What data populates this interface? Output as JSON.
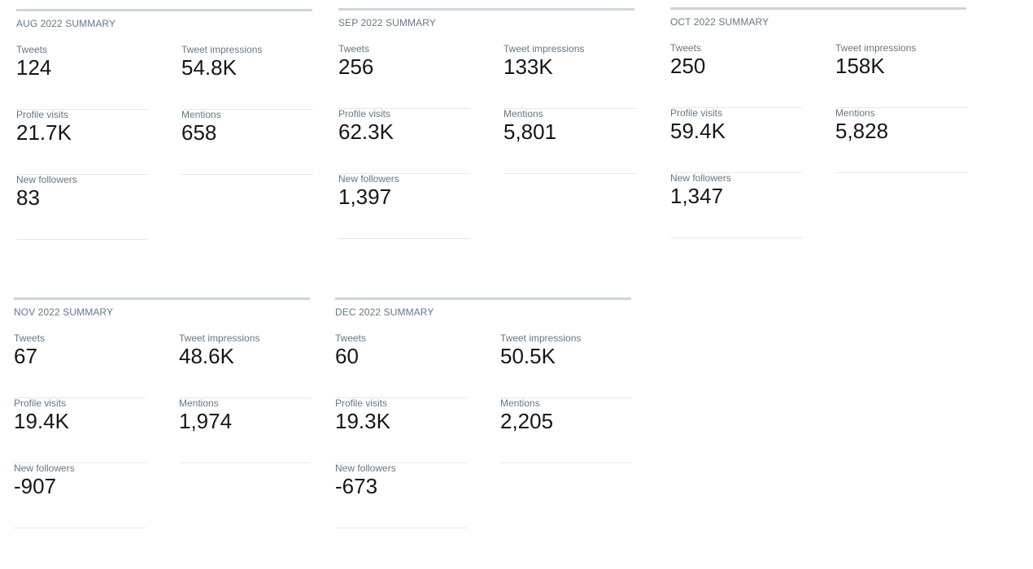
{
  "cards": [
    {
      "title": "AUG 2022 SUMMARY",
      "tweets": {
        "label": "Tweets",
        "value": "124"
      },
      "impressions": {
        "label": "Tweet impressions",
        "value": "54.8K"
      },
      "profile_visits": {
        "label": "Profile visits",
        "value": "21.7K"
      },
      "mentions": {
        "label": "Mentions",
        "value": "658"
      },
      "new_followers": {
        "label": "New followers",
        "value": "83"
      }
    },
    {
      "title": "SEP 2022 SUMMARY",
      "tweets": {
        "label": "Tweets",
        "value": "256"
      },
      "impressions": {
        "label": "Tweet impressions",
        "value": "133K"
      },
      "profile_visits": {
        "label": "Profile visits",
        "value": "62.3K"
      },
      "mentions": {
        "label": "Mentions",
        "value": "5,801"
      },
      "new_followers": {
        "label": "New followers",
        "value": "1,397"
      }
    },
    {
      "title": "OCT 2022 SUMMARY",
      "tweets": {
        "label": "Tweets",
        "value": "250"
      },
      "impressions": {
        "label": "Tweet impressions",
        "value": "158K"
      },
      "profile_visits": {
        "label": "Profile visits",
        "value": "59.4K"
      },
      "mentions": {
        "label": "Mentions",
        "value": "5,828"
      },
      "new_followers": {
        "label": "New followers",
        "value": "1,347"
      }
    },
    {
      "title": "NOV 2022 SUMMARY",
      "tweets": {
        "label": "Tweets",
        "value": "67"
      },
      "impressions": {
        "label": "Tweet impressions",
        "value": "48.6K"
      },
      "profile_visits": {
        "label": "Profile visits",
        "value": "19.4K"
      },
      "mentions": {
        "label": "Mentions",
        "value": "1,974"
      },
      "new_followers": {
        "label": "New followers",
        "value": "-907"
      }
    },
    {
      "title": "DEC 2022 SUMMARY",
      "tweets": {
        "label": "Tweets",
        "value": "60"
      },
      "impressions": {
        "label": "Tweet impressions",
        "value": "50.5K"
      },
      "profile_visits": {
        "label": "Profile visits",
        "value": "19.3K"
      },
      "mentions": {
        "label": "Mentions",
        "value": "2,205"
      },
      "new_followers": {
        "label": "New followers",
        "value": "-673"
      }
    }
  ],
  "colors": {
    "card_border": "#ccd6dd",
    "divider": "#e1e8ed",
    "label_text": "#657786",
    "value_text": "#14171a"
  }
}
